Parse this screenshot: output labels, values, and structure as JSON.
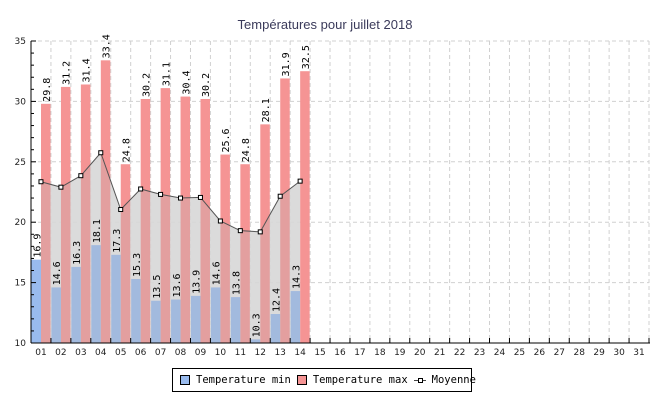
{
  "chart_data": {
    "type": "bar",
    "title": "Températures pour juillet 2018",
    "xlabel": "",
    "ylabel": "",
    "ylim": [
      10,
      35
    ],
    "yticks": [
      10,
      15,
      20,
      25,
      30,
      35
    ],
    "grid": true,
    "legend_position": "bottom-center",
    "categories": [
      "01",
      "02",
      "03",
      "04",
      "05",
      "06",
      "07",
      "08",
      "09",
      "10",
      "11",
      "12",
      "13",
      "14",
      "15",
      "16",
      "17",
      "18",
      "19",
      "20",
      "21",
      "22",
      "23",
      "24",
      "25",
      "26",
      "27",
      "28",
      "29",
      "30",
      "31"
    ],
    "series": [
      {
        "name": "Temperature min",
        "type": "bar",
        "color": "#99bbee",
        "values": [
          16.9,
          14.6,
          16.3,
          18.1,
          17.3,
          15.3,
          13.5,
          13.6,
          13.9,
          14.6,
          13.8,
          10.3,
          12.4,
          14.3,
          null,
          null,
          null,
          null,
          null,
          null,
          null,
          null,
          null,
          null,
          null,
          null,
          null,
          null,
          null,
          null,
          null
        ]
      },
      {
        "name": "Temperature max",
        "type": "bar",
        "color": "#f59494",
        "values": [
          29.8,
          31.2,
          31.4,
          33.4,
          24.8,
          30.2,
          31.1,
          30.4,
          30.2,
          25.6,
          24.8,
          28.1,
          31.9,
          32.5,
          null,
          null,
          null,
          null,
          null,
          null,
          null,
          null,
          null,
          null,
          null,
          null,
          null,
          null,
          null,
          null,
          null
        ]
      },
      {
        "name": "Moyenne",
        "type": "line",
        "color": "#555555",
        "values": [
          23.35,
          22.9,
          23.85,
          25.75,
          21.05,
          22.75,
          22.3,
          22.0,
          22.05,
          20.1,
          19.3,
          19.2,
          22.15,
          23.4,
          null,
          null,
          null,
          null,
          null,
          null,
          null,
          null,
          null,
          null,
          null,
          null,
          null,
          null,
          null,
          null,
          null
        ]
      }
    ]
  },
  "legend": {
    "min_label": "Temperature min",
    "max_label": "Temperature max",
    "avg_label": "Moyenne"
  }
}
